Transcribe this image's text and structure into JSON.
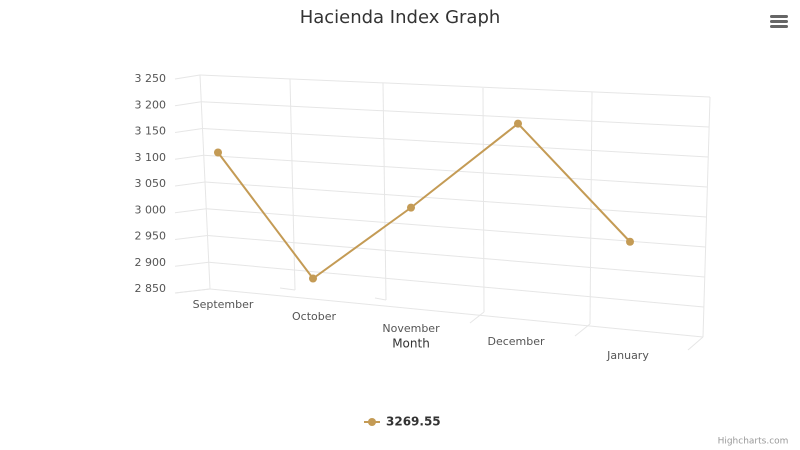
{
  "chart_data": {
    "type": "line",
    "title": "Hacienda Index Graph",
    "x_label": "Month",
    "categories": [
      "September",
      "October",
      "November",
      "December",
      "January"
    ],
    "series": [
      {
        "name": "3269.55",
        "color": "#c49b55",
        "values": [
          3110,
          2870,
          3005,
          3165,
          2940
        ]
      }
    ],
    "ylim": [
      2850,
      3250
    ],
    "yticks": [
      {
        "value": 2850,
        "label": "2 850"
      },
      {
        "value": 2900,
        "label": "2 900"
      },
      {
        "value": 2950,
        "label": "2 950"
      },
      {
        "value": 3000,
        "label": "3 000"
      },
      {
        "value": 3050,
        "label": "3 050"
      },
      {
        "value": 3100,
        "label": "3 100"
      },
      {
        "value": 3150,
        "label": "3 150"
      },
      {
        "value": 3200,
        "label": "3 200"
      },
      {
        "value": 3250,
        "label": "3 250"
      }
    ],
    "grid": true,
    "legend": "bottom",
    "credits": "Highcharts.com"
  }
}
